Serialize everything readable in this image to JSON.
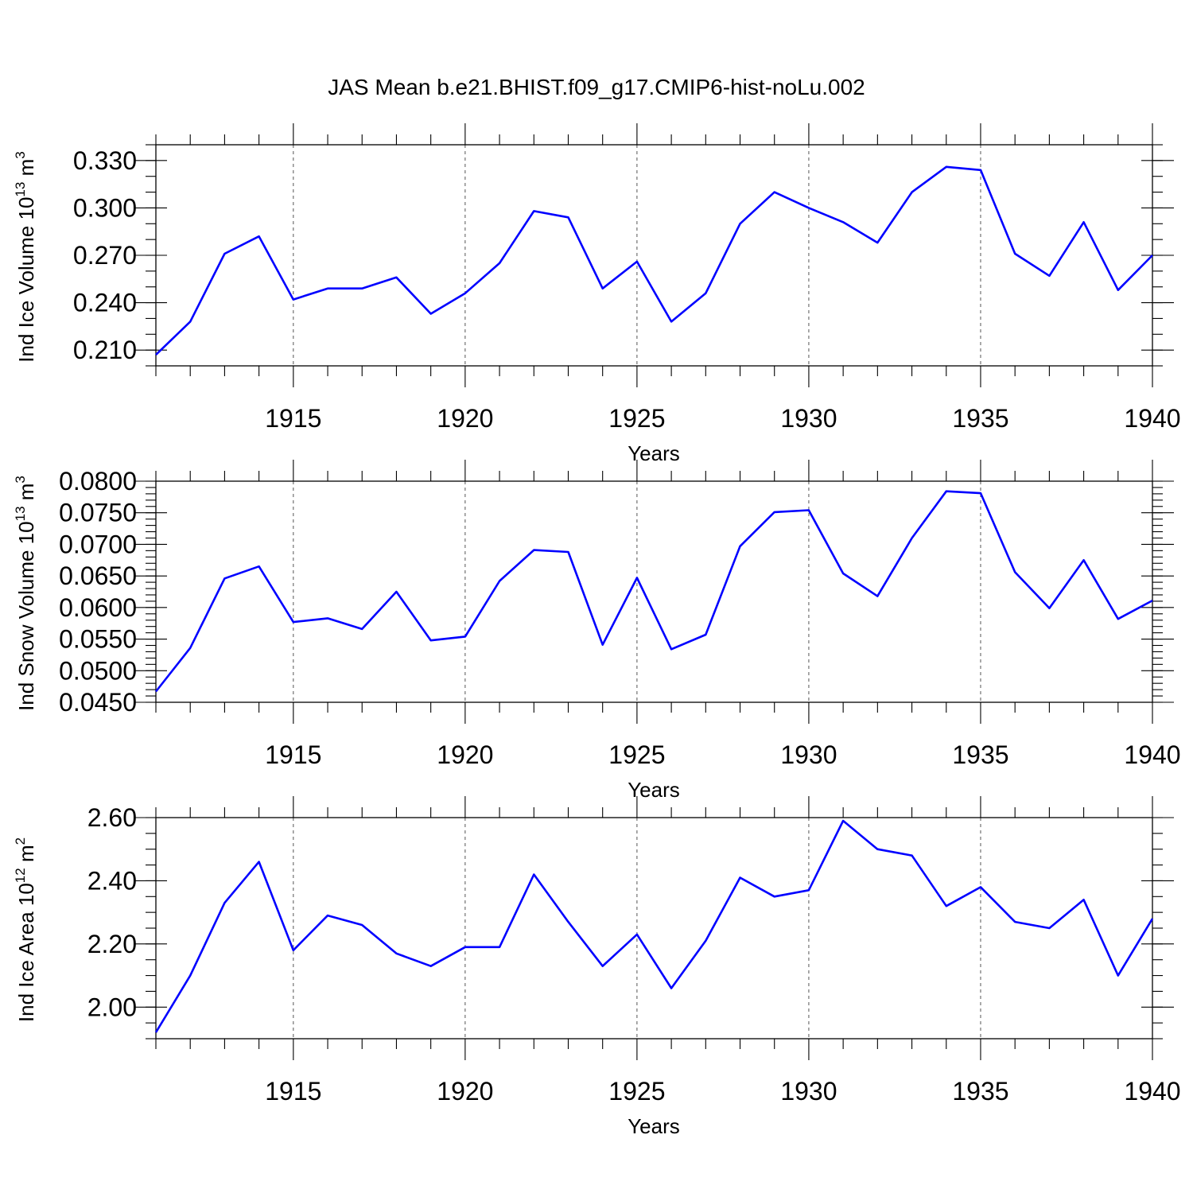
{
  "title": "JAS Mean b.e21.BHIST.f09_g17.CMIP6-hist-noLu.002",
  "colors": {
    "series": "#0000ff",
    "axis": "#000000",
    "grid": "#555555"
  },
  "chart_data": [
    {
      "type": "line",
      "ylabel": {
        "prefix": "Ind Ice Volume 10",
        "exp": "13",
        "unit": " m",
        "unit_exp": "3"
      },
      "xlabel": "Years",
      "x": [
        1911,
        1912,
        1913,
        1914,
        1915,
        1916,
        1917,
        1918,
        1919,
        1920,
        1921,
        1922,
        1923,
        1924,
        1925,
        1926,
        1927,
        1928,
        1929,
        1930,
        1931,
        1932,
        1933,
        1934,
        1935,
        1936,
        1937,
        1938,
        1939,
        1940
      ],
      "values": [
        0.207,
        0.228,
        0.271,
        0.282,
        0.242,
        0.249,
        0.249,
        0.256,
        0.233,
        0.246,
        0.265,
        0.298,
        0.294,
        0.249,
        0.266,
        0.228,
        0.246,
        0.29,
        0.31,
        0.3,
        0.291,
        0.278,
        0.31,
        0.326,
        0.324,
        0.271,
        0.257,
        0.291,
        0.248,
        0.27
      ],
      "xlim": [
        1911,
        1940
      ],
      "ylim": [
        0.2,
        0.34
      ],
      "xticks": [
        1915,
        1920,
        1925,
        1930,
        1935,
        1940
      ],
      "xtick_labels": [
        "1915",
        "1920",
        "1925",
        "1930",
        "1935",
        "1940"
      ],
      "yticks": [
        0.21,
        0.24,
        0.27,
        0.3,
        0.33
      ],
      "ytick_labels": [
        "0.210",
        "0.240",
        "0.270",
        "0.300",
        "0.330"
      ],
      "yminor_step": 0.01,
      "grid": "x-dashed"
    },
    {
      "type": "line",
      "ylabel": {
        "prefix": "Ind Snow Volume 10",
        "exp": "13",
        "unit": " m",
        "unit_exp": "3"
      },
      "xlabel": "Years",
      "x": [
        1911,
        1912,
        1913,
        1914,
        1915,
        1916,
        1917,
        1918,
        1919,
        1920,
        1921,
        1922,
        1923,
        1924,
        1925,
        1926,
        1927,
        1928,
        1929,
        1930,
        1931,
        1932,
        1933,
        1934,
        1935,
        1936,
        1937,
        1938,
        1939,
        1940
      ],
      "values": [
        0.0467,
        0.0536,
        0.0646,
        0.0665,
        0.0577,
        0.0583,
        0.0566,
        0.0625,
        0.0548,
        0.0554,
        0.0642,
        0.0691,
        0.0688,
        0.0541,
        0.0647,
        0.0534,
        0.0557,
        0.0697,
        0.0751,
        0.0754,
        0.0654,
        0.0618,
        0.071,
        0.0784,
        0.0781,
        0.0656,
        0.0599,
        0.0675,
        0.0582,
        0.0611
      ],
      "xlim": [
        1911,
        1940
      ],
      "ylim": [
        0.045,
        0.08
      ],
      "xticks": [
        1915,
        1920,
        1925,
        1930,
        1935,
        1940
      ],
      "xtick_labels": [
        "1915",
        "1920",
        "1925",
        "1930",
        "1935",
        "1940"
      ],
      "yticks": [
        0.045,
        0.05,
        0.055,
        0.06,
        0.065,
        0.07,
        0.075,
        0.08
      ],
      "ytick_labels": [
        "0.0450",
        "0.0500",
        "0.0550",
        "0.0600",
        "0.0650",
        "0.0700",
        "0.0750",
        "0.0800"
      ],
      "yminor_step": 0.001,
      "grid": "x-dashed"
    },
    {
      "type": "line",
      "ylabel": {
        "prefix": "Ind Ice Area 10",
        "exp": "12",
        "unit": " m",
        "unit_exp": "2"
      },
      "xlabel": "Years",
      "x": [
        1911,
        1912,
        1913,
        1914,
        1915,
        1916,
        1917,
        1918,
        1919,
        1920,
        1921,
        1922,
        1923,
        1924,
        1925,
        1926,
        1927,
        1928,
        1929,
        1930,
        1931,
        1932,
        1933,
        1934,
        1935,
        1936,
        1937,
        1938,
        1939,
        1940
      ],
      "values": [
        1.92,
        2.1,
        2.33,
        2.46,
        2.18,
        2.29,
        2.26,
        2.17,
        2.13,
        2.19,
        2.19,
        2.42,
        2.27,
        2.13,
        2.23,
        2.06,
        2.21,
        2.41,
        2.35,
        2.37,
        2.59,
        2.5,
        2.48,
        2.32,
        2.38,
        2.27,
        2.25,
        2.34,
        2.1,
        2.28
      ],
      "xlim": [
        1911,
        1940
      ],
      "ylim": [
        1.9,
        2.6
      ],
      "xticks": [
        1915,
        1920,
        1925,
        1930,
        1935,
        1940
      ],
      "xtick_labels": [
        "1915",
        "1920",
        "1925",
        "1930",
        "1935",
        "1940"
      ],
      "yticks": [
        2.0,
        2.2,
        2.4,
        2.6
      ],
      "ytick_labels": [
        "2.00",
        "2.20",
        "2.40",
        "2.60"
      ],
      "yminor_step": 0.05,
      "grid": "x-dashed"
    }
  ]
}
